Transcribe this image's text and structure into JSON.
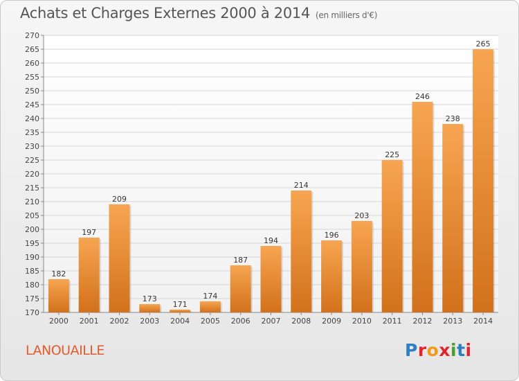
{
  "header": {
    "title": "Achats et Charges Externes 2000 à 2014",
    "unit": "(en milliers d'€)"
  },
  "footer": {
    "commune": "LANOUAILLE",
    "logo_text": "Proxiti"
  },
  "colors": {
    "bar_top": "#f7a552",
    "bar_bottom": "#d2711b",
    "commune": "#e35b2c",
    "logo": [
      "#2e7fc1",
      "#e0262b",
      "#f29a1a",
      "#e0262b",
      "#4aa02c",
      "#2e7fc1",
      "#e0262b"
    ]
  },
  "chart_data": {
    "type": "bar",
    "title": "Achats et Charges Externes 2000 à 2014",
    "subtitle": "(en milliers d'€)",
    "xlabel": "",
    "ylabel": "",
    "categories": [
      "2000",
      "2001",
      "2002",
      "2003",
      "2004",
      "2005",
      "2006",
      "2007",
      "2008",
      "2009",
      "2010",
      "2011",
      "2012",
      "2013",
      "2014"
    ],
    "values": [
      182,
      197,
      209,
      173,
      171,
      174,
      187,
      194,
      214,
      196,
      203,
      225,
      246,
      238,
      265
    ],
    "ylim": [
      170,
      270
    ],
    "yticks": [
      170,
      175,
      180,
      185,
      190,
      195,
      200,
      205,
      210,
      215,
      220,
      225,
      230,
      235,
      240,
      245,
      250,
      255,
      260,
      265,
      270
    ],
    "grid": true,
    "data_labels": true
  }
}
